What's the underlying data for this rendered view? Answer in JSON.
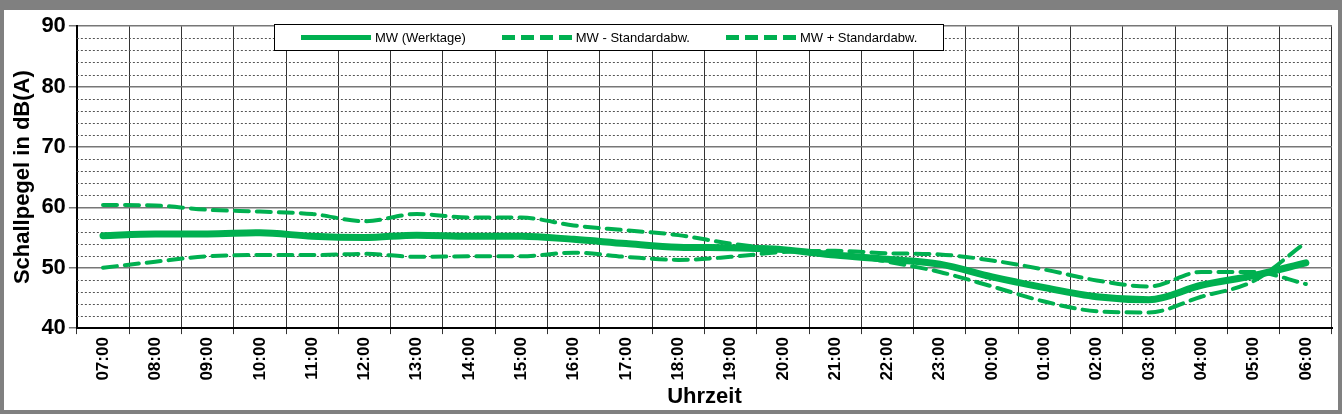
{
  "chart_data": {
    "type": "line",
    "xlabel": "Uhrzeit",
    "ylabel": "Schallpegel in dB(A)",
    "categories": [
      "07:00",
      "08:00",
      "09:00",
      "10:00",
      "11:00",
      "12:00",
      "13:00",
      "14:00",
      "15:00",
      "16:00",
      "17:00",
      "18:00",
      "19:00",
      "20:00",
      "21:00",
      "22:00",
      "23:00",
      "00:00",
      "01:00",
      "02:00",
      "03:00",
      "04:00",
      "05:00",
      "06:00"
    ],
    "series": [
      {
        "name": "MW (Werktage)",
        "color": "#00b050",
        "line_style": "solid",
        "values": [
          55.3,
          55.6,
          55.6,
          55.8,
          55.2,
          55.0,
          55.4,
          55.2,
          55.2,
          54.7,
          54.0,
          53.4,
          53.3,
          53.0,
          52.1,
          51.4,
          50.6,
          48.5,
          46.7,
          45.2,
          44.7,
          47.1,
          48.7,
          50.8
        ]
      },
      {
        "name": "MW - Standardabw.",
        "color": "#00b050",
        "line_style": "dashed",
        "values": [
          50.0,
          51.0,
          51.9,
          52.1,
          52.1,
          52.3,
          51.8,
          51.9,
          51.9,
          52.5,
          51.8,
          51.3,
          51.8,
          52.6,
          52.8,
          52.4,
          52.2,
          51.2,
          49.7,
          47.9,
          46.9,
          49.3,
          49.3,
          47.3
        ]
      },
      {
        "name": "MW + Standardabw.",
        "color": "#00b050",
        "line_style": "dashed",
        "values": [
          60.4,
          60.3,
          59.6,
          59.3,
          58.9,
          57.7,
          58.9,
          58.3,
          58.3,
          57.0,
          56.2,
          55.4,
          54.0,
          53.0,
          52.4,
          51.0,
          49.3,
          46.9,
          44.4,
          42.8,
          42.6,
          45.2,
          47.8,
          54.2
        ]
      }
    ],
    "ylim": [
      40,
      90
    ],
    "yticks": [
      40,
      {
        "value": 42,
        "label": null
      },
      {
        "value": 44,
        "label": null
      },
      {
        "value": 46,
        "label": null
      },
      {
        "value": 48,
        "label": null
      },
      50,
      {
        "value": 52,
        "label": null
      },
      {
        "value": 54,
        "label": null
      },
      {
        "value": 56,
        "label": null
      },
      {
        "value": 58,
        "label": null
      },
      60,
      {
        "value": 62,
        "label": null
      },
      {
        "value": 64,
        "label": null
      },
      {
        "value": 66,
        "label": null
      },
      {
        "value": 68,
        "label": null
      },
      70,
      {
        "value": 72,
        "label": null
      },
      {
        "value": 74,
        "label": null
      },
      {
        "value": 76,
        "label": null
      },
      {
        "value": 78,
        "label": null
      },
      80,
      {
        "value": 82,
        "label": null
      },
      {
        "value": 84,
        "label": null
      },
      {
        "value": 86,
        "label": null
      },
      {
        "value": 88,
        "label": null
      },
      90
    ],
    "grid": true,
    "legend": "top"
  }
}
